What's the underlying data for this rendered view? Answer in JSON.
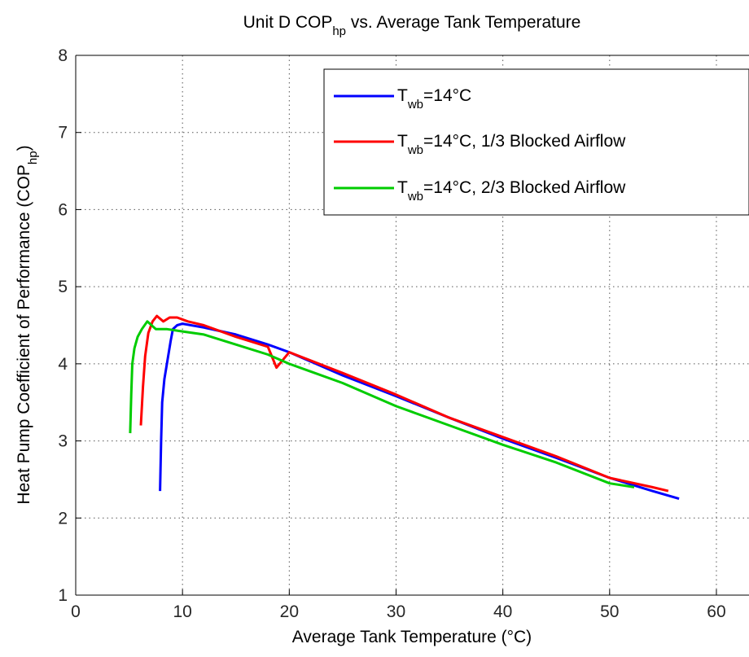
{
  "chart_data": {
    "type": "line",
    "title": {
      "pre": "Unit D COP",
      "sub": "hp",
      "post": " vs. Average Tank Temperature"
    },
    "xlabel": "Average Tank Temperature (°C)",
    "ylabel": {
      "pre": "Heat Pump Coefficient of Performance (COP",
      "sub": "hp",
      "post": ")"
    },
    "xlim": [
      0,
      63
    ],
    "ylim": [
      1,
      8
    ],
    "xticks": [
      "0",
      "10",
      "20",
      "30",
      "40",
      "50",
      "60"
    ],
    "yticks": [
      "1",
      "2",
      "3",
      "4",
      "5",
      "6",
      "7",
      "8"
    ],
    "grid": true,
    "legend_position": "top-right",
    "series": [
      {
        "legend": {
          "pre": "T",
          "sub": "wb",
          "post": "=14°C"
        },
        "color": "#0000ff",
        "x": [
          7.9,
          8.0,
          8.1,
          8.3,
          8.6,
          8.9,
          9.1,
          9.5,
          10.0,
          12.0,
          15.0,
          18.0,
          20.0,
          25.0,
          30.0,
          35.0,
          40.0,
          45.0,
          50.0,
          54.0,
          56.5
        ],
        "y": [
          2.35,
          3.0,
          3.5,
          3.8,
          4.05,
          4.3,
          4.45,
          4.5,
          4.52,
          4.47,
          4.38,
          4.25,
          4.15,
          3.85,
          3.58,
          3.3,
          3.03,
          2.78,
          2.52,
          2.35,
          2.25
        ]
      },
      {
        "legend": {
          "pre": "T",
          "sub": "wb",
          "post": "=14°C, 1/3 Blocked Airflow"
        },
        "color": "#ff0000",
        "x": [
          6.1,
          6.3,
          6.5,
          6.8,
          7.2,
          7.6,
          8.2,
          8.8,
          9.5,
          10.5,
          12.0,
          15.0,
          18.0,
          18.8,
          20.0,
          25.0,
          30.0,
          35.0,
          40.0,
          45.0,
          50.0,
          54.0,
          55.5
        ],
        "y": [
          3.2,
          3.7,
          4.1,
          4.4,
          4.55,
          4.62,
          4.55,
          4.6,
          4.6,
          4.55,
          4.5,
          4.35,
          4.22,
          3.95,
          4.15,
          3.88,
          3.6,
          3.3,
          3.05,
          2.8,
          2.52,
          2.4,
          2.35
        ]
      },
      {
        "legend": {
          "pre": "T",
          "sub": "wb",
          "post": "=14°C, 2/3 Blocked Airflow"
        },
        "color": "#00cc00",
        "x": [
          5.1,
          5.2,
          5.3,
          5.5,
          5.8,
          6.2,
          6.7,
          7.5,
          8.5,
          10.0,
          12.0,
          15.0,
          18.0,
          20.0,
          25.0,
          30.0,
          35.0,
          40.0,
          45.0,
          50.0,
          52.3
        ],
        "y": [
          3.1,
          3.6,
          4.0,
          4.2,
          4.35,
          4.45,
          4.55,
          4.45,
          4.45,
          4.42,
          4.38,
          4.25,
          4.12,
          4.0,
          3.75,
          3.45,
          3.2,
          2.95,
          2.72,
          2.45,
          2.4
        ]
      }
    ]
  }
}
